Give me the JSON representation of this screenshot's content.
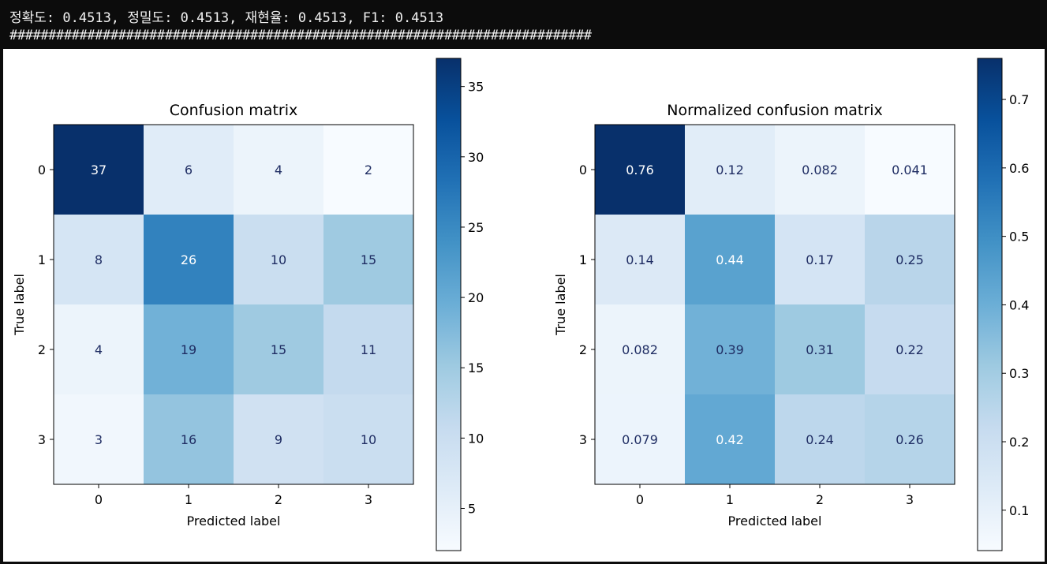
{
  "console": {
    "metrics_line": "정확도: 0.4513, 정밀도: 0.4513, 재현율: 0.4513, F1: 0.4513",
    "separator_line": "###########################################################################"
  },
  "chart_data": [
    {
      "type": "heatmap",
      "title": "Confusion matrix",
      "xlabel": "Predicted label",
      "ylabel": "True label",
      "x_categories": [
        "0",
        "1",
        "2",
        "3"
      ],
      "y_categories": [
        "0",
        "1",
        "2",
        "3"
      ],
      "values": [
        [
          37,
          6,
          4,
          2
        ],
        [
          8,
          26,
          10,
          15
        ],
        [
          4,
          19,
          15,
          11
        ],
        [
          3,
          16,
          9,
          10
        ]
      ],
      "labels": [
        [
          "37",
          "6",
          "4",
          "2"
        ],
        [
          "8",
          "26",
          "10",
          "15"
        ],
        [
          "4",
          "19",
          "15",
          "11"
        ],
        [
          "3",
          "16",
          "9",
          "10"
        ]
      ],
      "vmin": 2,
      "vmax": 37,
      "colormap": "Blues",
      "colorbar_ticks": [
        5,
        10,
        15,
        20,
        25,
        30,
        35
      ],
      "colorbar_tick_labels": [
        "5",
        "10",
        "15",
        "20",
        "25",
        "30",
        "35"
      ]
    },
    {
      "type": "heatmap",
      "title": "Normalized confusion matrix",
      "xlabel": "Predicted label",
      "ylabel": "True label",
      "x_categories": [
        "0",
        "1",
        "2",
        "3"
      ],
      "y_categories": [
        "0",
        "1",
        "2",
        "3"
      ],
      "values": [
        [
          0.76,
          0.12,
          0.082,
          0.041
        ],
        [
          0.14,
          0.44,
          0.17,
          0.25
        ],
        [
          0.082,
          0.39,
          0.31,
          0.22
        ],
        [
          0.079,
          0.42,
          0.24,
          0.26
        ]
      ],
      "labels": [
        [
          "0.76",
          "0.12",
          "0.082",
          "0.041"
        ],
        [
          "0.14",
          "0.44",
          "0.17",
          "0.25"
        ],
        [
          "0.082",
          "0.39",
          "0.31",
          "0.22"
        ],
        [
          "0.079",
          "0.42",
          "0.24",
          "0.26"
        ]
      ],
      "vmin": 0.041,
      "vmax": 0.76,
      "colormap": "Blues",
      "colorbar_ticks": [
        0.1,
        0.2,
        0.3,
        0.4,
        0.5,
        0.6,
        0.7
      ],
      "colorbar_tick_labels": [
        "0.1",
        "0.2",
        "0.3",
        "0.4",
        "0.5",
        "0.6",
        "0.7"
      ]
    }
  ]
}
